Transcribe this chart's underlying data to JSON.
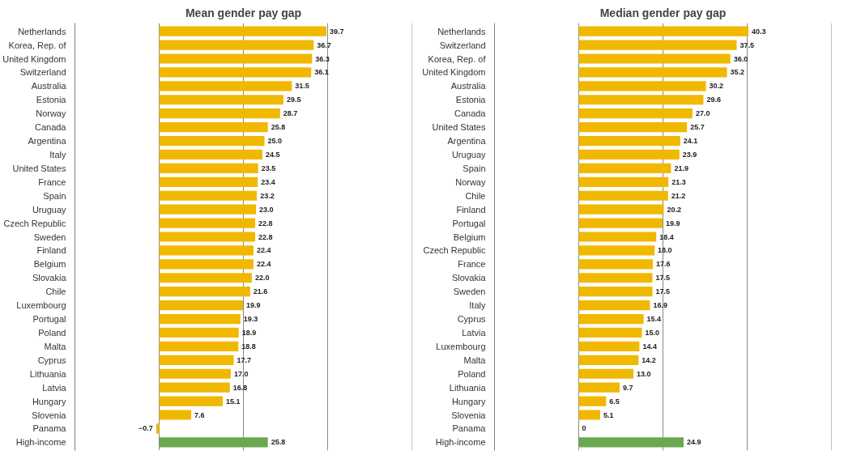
{
  "chart_data": [
    {
      "type": "bar",
      "orientation": "horizontal",
      "title": "Mean gender pay gap",
      "categories": [
        "Netherlands",
        "Korea, Rep. of",
        "United Kingdom",
        "Switzerland",
        "Australia",
        "Estonia",
        "Norway",
        "Canada",
        "Argentina",
        "Italy",
        "United States",
        "France",
        "Spain",
        "Uruguay",
        "Czech Republic",
        "Sweden",
        "Finland",
        "Belgium",
        "Slovakia",
        "Chile",
        "Luxembourg",
        "Portugal",
        "Poland",
        "Malta",
        "Cyprus",
        "Lithuania",
        "Latvia",
        "Hungary",
        "Slovenia",
        "Panama",
        "High-income"
      ],
      "values": [
        39.7,
        36.7,
        36.3,
        36.1,
        31.5,
        29.5,
        28.7,
        25.8,
        25.0,
        24.5,
        23.5,
        23.4,
        23.2,
        23.0,
        22.8,
        22.8,
        22.4,
        22.4,
        22.0,
        21.6,
        19.9,
        19.3,
        18.9,
        18.8,
        17.7,
        17.0,
        16.8,
        15.1,
        7.6,
        -0.7,
        25.8
      ],
      "value_labels": [
        "39.7",
        "36.7",
        "36.3",
        "36.1",
        "31.5",
        "29.5",
        "28.7",
        "25.8",
        "25.0",
        "24.5",
        "23.5",
        "23.4",
        "23.2",
        "23.0",
        "22.8",
        "22.8",
        "22.4",
        "22.4",
        "22.0",
        "21.6",
        "19.9",
        "19.3",
        "18.9",
        "18.8",
        "17.7",
        "17.0",
        "16.8",
        "15.1",
        "7.6",
        "−0.7",
        "25.8"
      ],
      "colors": [
        "#f0b800",
        "#f0b800",
        "#f0b800",
        "#f0b800",
        "#f0b800",
        "#f0b800",
        "#f0b800",
        "#f0b800",
        "#f0b800",
        "#f0b800",
        "#f0b800",
        "#f0b800",
        "#f0b800",
        "#f0b800",
        "#f0b800",
        "#f0b800",
        "#f0b800",
        "#f0b800",
        "#f0b800",
        "#f0b800",
        "#f0b800",
        "#f0b800",
        "#f0b800",
        "#f0b800",
        "#f0b800",
        "#f0b800",
        "#f0b800",
        "#f0b800",
        "#f0b800",
        "#f0b800",
        "#6aa84f"
      ],
      "xlim": [
        -20,
        60
      ],
      "xticks": [
        {
          "value": -20,
          "label": null
        },
        {
          "value": 0,
          "label": null
        },
        {
          "value": 20,
          "label": null
        },
        {
          "value": 40,
          "label": null
        },
        {
          "value": 60,
          "label": null
        }
      ],
      "grid": "x",
      "tick_labels": "y"
    },
    {
      "type": "bar",
      "orientation": "horizontal",
      "title": "Median gender pay gap",
      "categories": [
        "Netherlands",
        "Switzerland",
        "Korea, Rep. of",
        "United Kingdom",
        "Australia",
        "Estonia",
        "Canada",
        "United States",
        "Argentina",
        "Uruguay",
        "Spain",
        "Norway",
        "Chile",
        "Finland",
        "Portugal",
        "Belgium",
        "Czech Republic",
        "France",
        "Slovakia",
        "Sweden",
        "Italy",
        "Cyprus",
        "Latvia",
        "Luxembourg",
        "Malta",
        "Poland",
        "Lithuania",
        "Hungary",
        "Slovenia",
        "Panama",
        "High-income"
      ],
      "values": [
        40.3,
        37.5,
        36.0,
        35.2,
        30.2,
        29.6,
        27.0,
        25.7,
        24.1,
        23.9,
        21.9,
        21.3,
        21.2,
        20.2,
        19.9,
        18.4,
        18.0,
        17.6,
        17.5,
        17.5,
        16.9,
        15.4,
        15.0,
        14.4,
        14.2,
        13.0,
        9.7,
        6.5,
        5.1,
        0,
        24.9
      ],
      "value_labels": [
        "40.3",
        "37.5",
        "36.0",
        "35.2",
        "30.2",
        "29.6",
        "27.0",
        "25.7",
        "24.1",
        "23.9",
        "21.9",
        "21.3",
        "21.2",
        "20.2",
        "19.9",
        "18.4",
        "18.0",
        "17.6",
        "17.5",
        "17.5",
        "16.9",
        "15.4",
        "15.0",
        "14.4",
        "14.2",
        "13.0",
        "9.7",
        "6.5",
        "5.1",
        "0",
        "24.9"
      ],
      "colors": [
        "#f0b800",
        "#f0b800",
        "#f0b800",
        "#f0b800",
        "#f0b800",
        "#f0b800",
        "#f0b800",
        "#f0b800",
        "#f0b800",
        "#f0b800",
        "#f0b800",
        "#f0b800",
        "#f0b800",
        "#f0b800",
        "#f0b800",
        "#f0b800",
        "#f0b800",
        "#f0b800",
        "#f0b800",
        "#f0b800",
        "#f0b800",
        "#f0b800",
        "#f0b800",
        "#f0b800",
        "#f0b800",
        "#f0b800",
        "#f0b800",
        "#f0b800",
        "#f0b800",
        "#f0b800",
        "#6aa84f"
      ],
      "xlim": [
        -20,
        60
      ],
      "xticks": [
        {
          "value": -20,
          "label": null
        },
        {
          "value": 0,
          "label": null
        },
        {
          "value": 20,
          "label": null
        },
        {
          "value": 40,
          "label": null
        },
        {
          "value": 60,
          "label": null
        }
      ],
      "grid": "x",
      "tick_labels": "y"
    }
  ]
}
